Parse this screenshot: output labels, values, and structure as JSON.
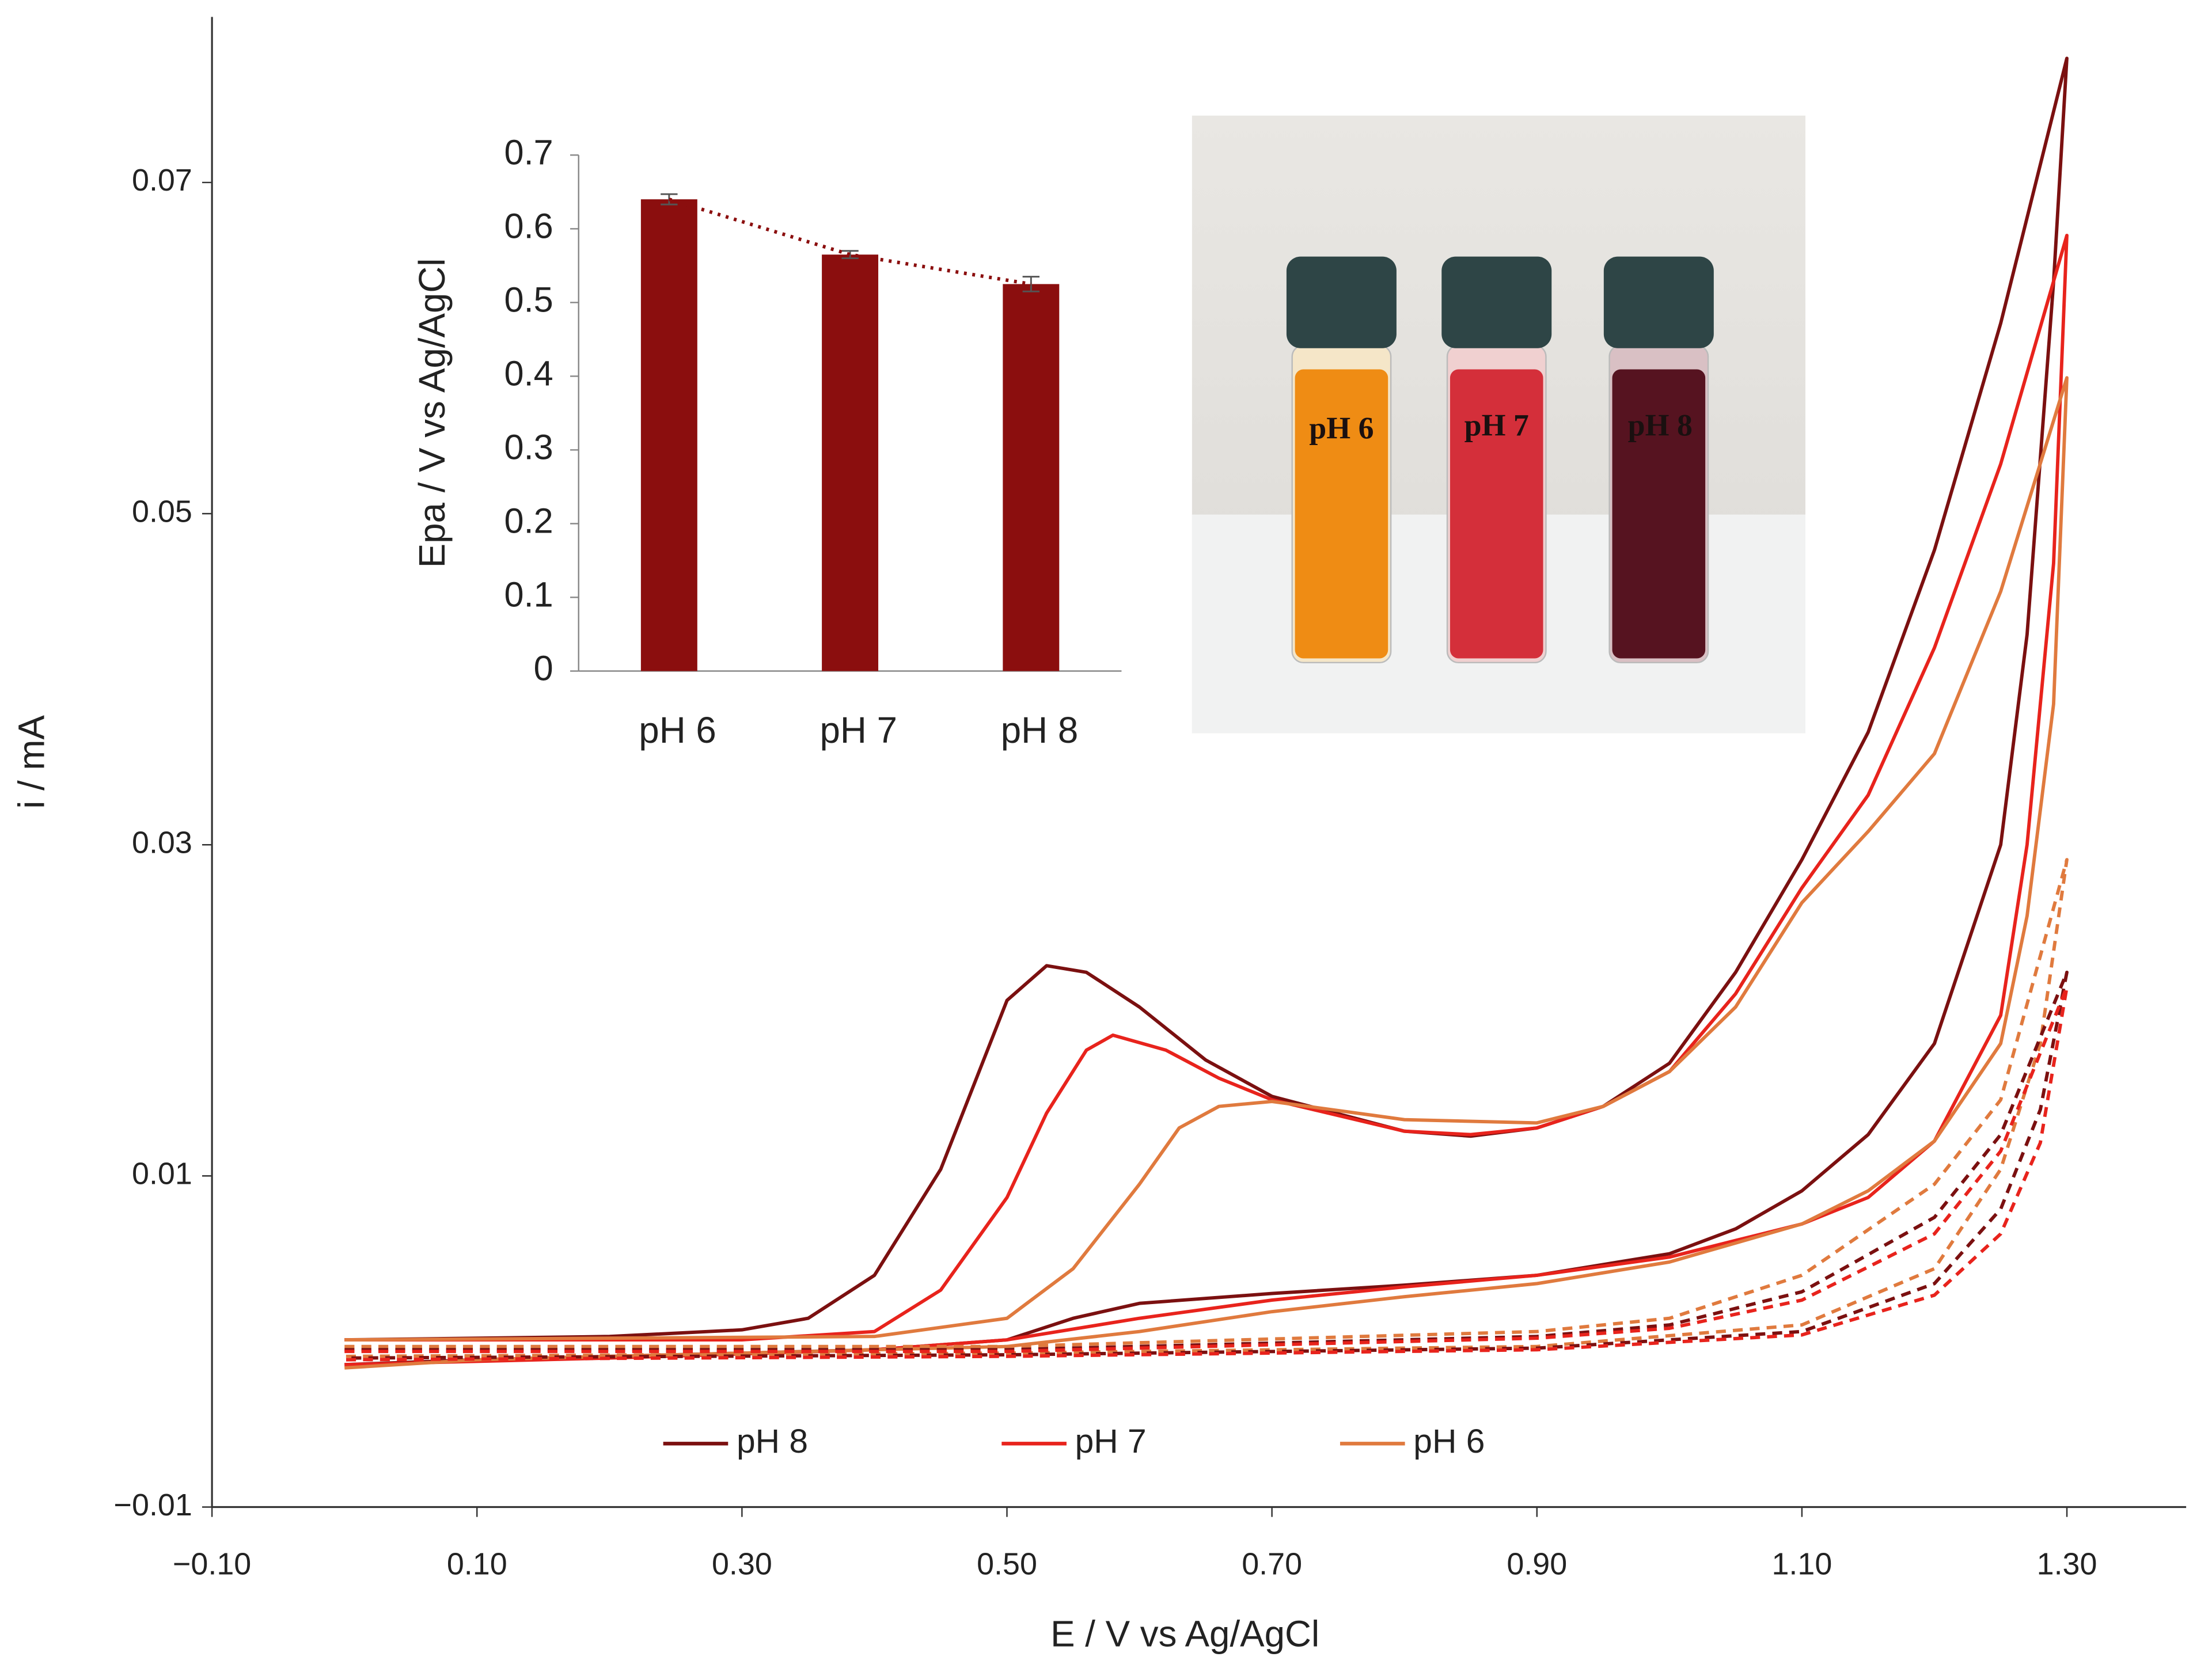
{
  "chart_data": [
    {
      "type": "line",
      "xlabel": "E / V vs Ag/AgCl",
      "ylabel": "i / mA",
      "xlim": [
        -0.1,
        1.39
      ],
      "ylim": [
        -0.01,
        0.08
      ],
      "xticks": [
        {
          "value": -0.1,
          "label": "−0.10"
        },
        {
          "value": 0.1,
          "label": "0.10"
        },
        {
          "value": 0.3,
          "label": "0.30"
        },
        {
          "value": 0.5,
          "label": "0.50"
        },
        {
          "value": 0.7,
          "label": "0.70"
        },
        {
          "value": 0.9,
          "label": "0.90"
        },
        {
          "value": 1.1,
          "label": "1.10"
        },
        {
          "value": 1.3,
          "label": "1.30"
        }
      ],
      "yticks": [
        {
          "value": -0.01,
          "label": "−0.01"
        },
        0.01,
        0.03,
        0.05,
        0.07
      ],
      "legend": "bottom",
      "series": [
        {
          "name": "pH 8",
          "color": "#7b1010",
          "x": [
            0,
            0.2,
            0.3,
            0.35,
            0.4,
            0.45,
            0.5,
            0.53,
            0.56,
            0.6,
            0.65,
            0.7,
            0.8,
            0.85,
            0.9,
            0.95,
            1.0,
            1.05,
            1.1,
            1.15,
            1.2,
            1.25,
            1.3,
            1.29,
            1.27,
            1.25,
            1.2,
            1.15,
            1.1,
            1.05,
            1.0,
            0.9,
            0.8,
            0.7,
            0.6,
            0.55,
            0.5,
            0.4,
            0.3,
            0.2,
            0.1,
            0
          ],
          "values": [
            0.0001,
            0.0003,
            0.0007,
            0.0014,
            0.004,
            0.0104,
            0.0206,
            0.0227,
            0.0223,
            0.0202,
            0.017,
            0.0148,
            0.0127,
            0.0124,
            0.0129,
            0.0142,
            0.0168,
            0.0223,
            0.0291,
            0.0368,
            0.0478,
            0.0615,
            0.0775,
            0.064,
            0.0427,
            0.03,
            0.018,
            0.0125,
            0.0091,
            0.0068,
            0.0053,
            0.004,
            0.0034,
            0.0029,
            0.0023,
            0.0014,
            0.0001,
            -0.0005,
            -0.0007,
            -0.0009,
            -0.0011,
            -0.0014
          ]
        },
        {
          "name": "pH 7",
          "color": "#e8231c",
          "x": [
            0,
            0.3,
            0.4,
            0.45,
            0.5,
            0.53,
            0.56,
            0.58,
            0.62,
            0.66,
            0.7,
            0.8,
            0.85,
            0.9,
            0.95,
            1.0,
            1.05,
            1.1,
            1.15,
            1.2,
            1.25,
            1.3,
            1.29,
            1.27,
            1.25,
            1.2,
            1.15,
            1.1,
            1.05,
            1.0,
            0.9,
            0.8,
            0.7,
            0.6,
            0.5,
            0.4,
            0.2,
            0
          ],
          "values": [
            0.0001,
            0.0001,
            0.0006,
            0.0031,
            0.0087,
            0.0138,
            0.0176,
            0.0185,
            0.0176,
            0.0159,
            0.0146,
            0.0127,
            0.0125,
            0.0129,
            0.0142,
            0.0163,
            0.021,
            0.0274,
            0.033,
            0.0419,
            0.053,
            0.0668,
            0.047,
            0.03,
            0.0197,
            0.0121,
            0.0087,
            0.0071,
            0.0061,
            0.0051,
            0.004,
            0.0033,
            0.0025,
            0.0014,
            0.0001,
            -0.0005,
            -0.001,
            -0.0014
          ]
        },
        {
          "name": "pH 6",
          "color": "#e07a3e",
          "x": [
            0,
            0.4,
            0.5,
            0.55,
            0.6,
            0.63,
            0.66,
            0.7,
            0.8,
            0.9,
            0.95,
            1.0,
            1.05,
            1.1,
            1.15,
            1.2,
            1.25,
            1.3,
            1.29,
            1.27,
            1.25,
            1.2,
            1.15,
            1.1,
            1.0,
            0.9,
            0.8,
            0.7,
            0.6,
            0.5,
            0.3,
            0.1,
            0
          ],
          "values": [
            0.0001,
            0.0003,
            0.0014,
            0.0044,
            0.0095,
            0.0129,
            0.0142,
            0.0145,
            0.0134,
            0.0132,
            0.0142,
            0.0163,
            0.0202,
            0.0265,
            0.0308,
            0.0355,
            0.0453,
            0.0582,
            0.0385,
            0.0257,
            0.018,
            0.0121,
            0.0091,
            0.0071,
            0.0048,
            0.0035,
            0.0027,
            0.0018,
            0.0006,
            -0.0003,
            -0.0007,
            -0.0011,
            -0.0016
          ]
        },
        {
          "color": "#e07a3e",
          "dashed": true,
          "x": [
            0,
            0.5,
            0.9,
            1.0,
            1.1,
            1.2,
            1.25,
            1.3,
            1.28,
            1.25,
            1.2,
            1.1,
            0.9,
            0.5,
            0
          ],
          "values": [
            -0.0003,
            -0.0003,
            0.0006,
            0.0014,
            0.004,
            0.0095,
            0.0146,
            0.0291,
            0.018,
            0.0104,
            0.0044,
            0.001,
            -0.0003,
            -0.0007,
            -0.0009
          ]
        },
        {
          "color": "#7b1010",
          "dashed": true,
          "x": [
            0,
            0.5,
            0.9,
            1.0,
            1.1,
            1.2,
            1.25,
            1.3,
            1.28,
            1.25,
            1.2,
            1.1,
            0.9,
            0.5,
            0
          ],
          "values": [
            -0.0005,
            -0.0005,
            0.0003,
            0.001,
            0.003,
            0.0075,
            0.0125,
            0.0223,
            0.014,
            0.008,
            0.0035,
            0.0006,
            -0.0004,
            -0.0008,
            -0.001
          ]
        },
        {
          "color": "#e8231c",
          "dashed": true,
          "x": [
            0,
            0.5,
            0.9,
            1.0,
            1.1,
            1.2,
            1.25,
            1.3,
            1.28,
            1.25,
            1.2,
            1.1,
            0.9,
            0.5,
            0
          ],
          "values": [
            -0.0006,
            -0.0006,
            0.0002,
            0.0008,
            0.0025,
            0.0065,
            0.0115,
            0.0214,
            0.012,
            0.0065,
            0.0028,
            0.0004,
            -0.0005,
            -0.0009,
            -0.0011
          ]
        }
      ]
    },
    {
      "type": "bar",
      "ylabel": "Epa / V vs Ag/AgCl",
      "color": "#8b0e0e",
      "categories": [
        "pH 6",
        "pH 7",
        "pH 8"
      ],
      "values": [
        0.64,
        0.565,
        0.525
      ],
      "errors": [
        0.007,
        0.005,
        0.01
      ],
      "ylim": [
        0,
        0.7
      ],
      "yticks": [
        0,
        0.1,
        0.2,
        0.3,
        0.4,
        0.5,
        0.6,
        0.7
      ],
      "trendline": true
    }
  ],
  "photo": {
    "labels": [
      "pH 6",
      "pH 7",
      "pH 8"
    ]
  }
}
